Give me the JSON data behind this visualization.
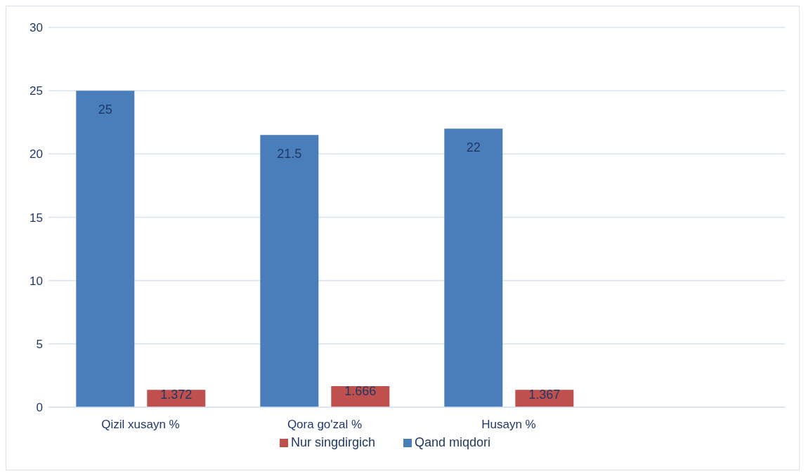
{
  "chart_data": {
    "type": "bar",
    "categories": [
      "Qizil xusayn %",
      "Qora go'zal %",
      "Husayn %",
      null
    ],
    "series": [
      {
        "name": "Qand miqdori",
        "color": "#4a7ebb",
        "values": [
          25,
          21.5,
          22,
          null
        ]
      },
      {
        "name": "Nur singdirgich",
        "color": "#c0504d",
        "values": [
          1.372,
          1.666,
          1.367,
          null
        ]
      }
    ],
    "ylim": [
      0,
      30
    ],
    "yticks": [
      0,
      5,
      10,
      15,
      20,
      25,
      30
    ],
    "grid": "y",
    "legend": "bottom",
    "data_labels": true
  }
}
